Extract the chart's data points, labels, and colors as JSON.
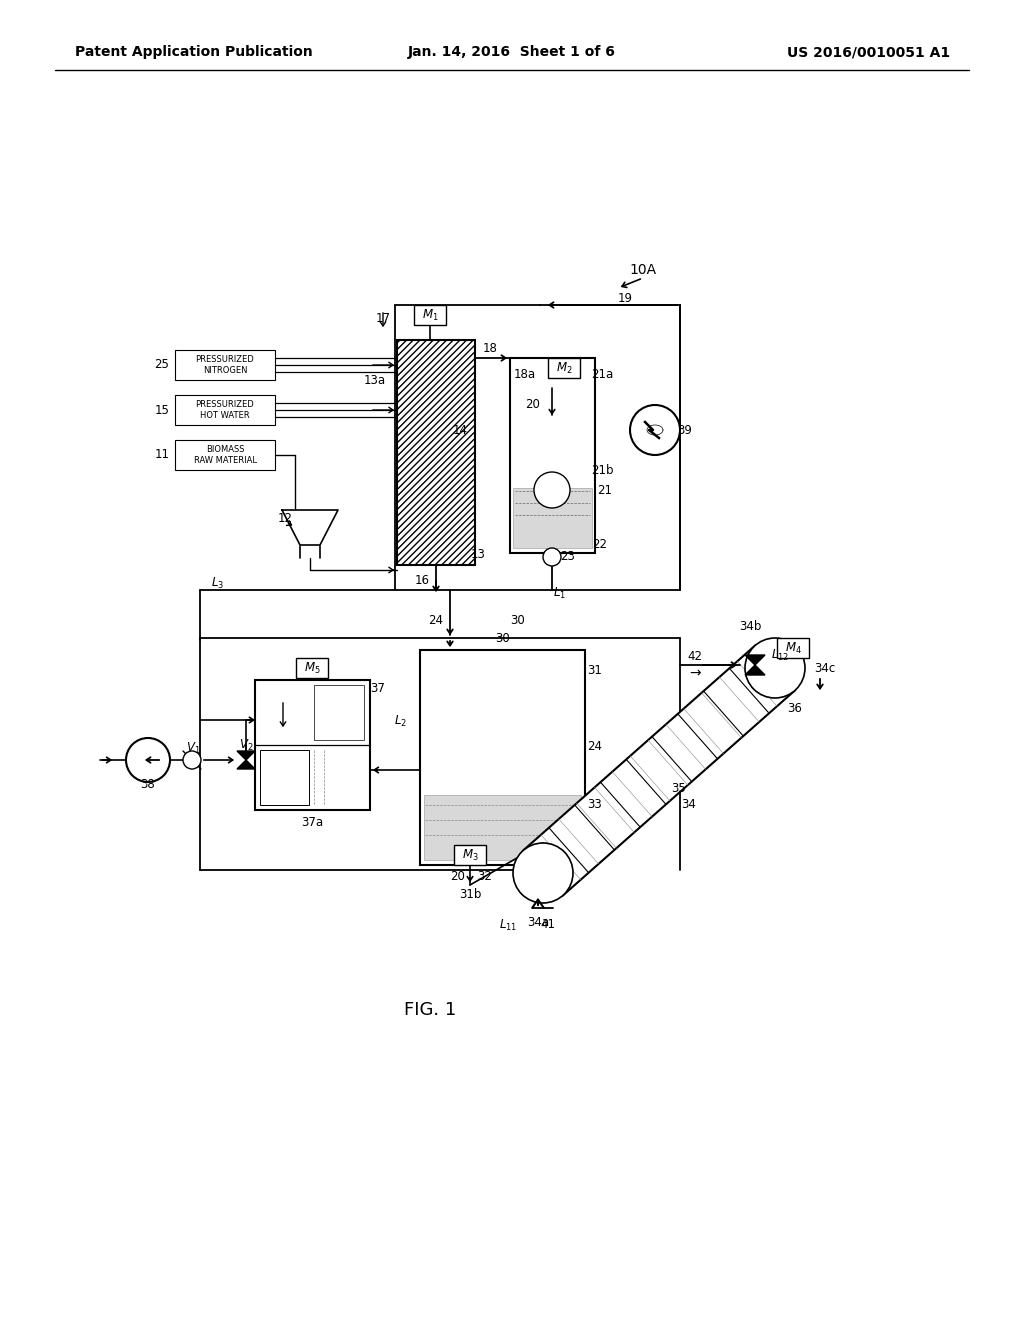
{
  "header_left": "Patent Application Publication",
  "header_mid": "Jan. 14, 2016  Sheet 1 of 6",
  "header_right": "US 2016/0010051 A1",
  "fig_label": "FIG. 1",
  "bg_color": "#ffffff",
  "lc": "#000000",
  "fs": 8.5,
  "fs_small": 6.0,
  "fs_fig": 13,
  "fs_hdr": 10
}
